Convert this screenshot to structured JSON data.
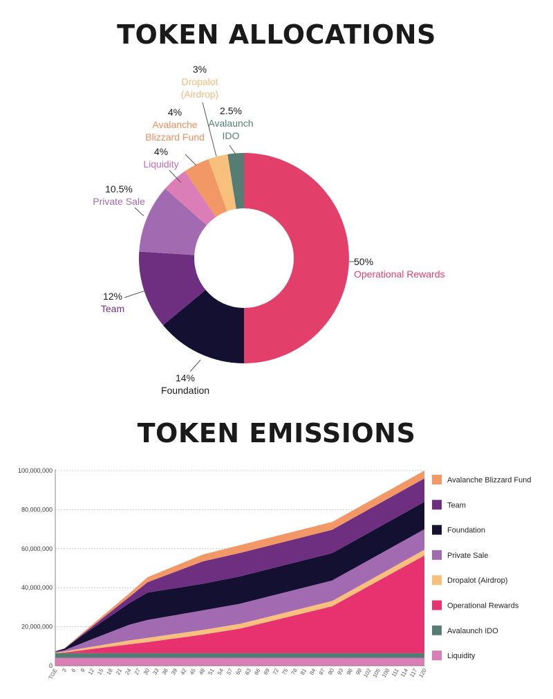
{
  "titles": {
    "allocations": "TOKEN ALLOCATIONS",
    "emissions": "TOKEN EMISSIONS"
  },
  "chart_data": [
    {
      "type": "pie",
      "title": "TOKEN ALLOCATIONS",
      "donut": true,
      "slices": [
        {
          "label": "Operational Rewards",
          "pct_label": "50%",
          "value": 50,
          "color": "#e33f6b",
          "label_color": "#e33f6b"
        },
        {
          "label": "Foundation",
          "pct_label": "14%",
          "value": 14,
          "color": "#141031",
          "label_color": "#1a1a1a"
        },
        {
          "label": "Team",
          "pct_label": "12%",
          "value": 12,
          "color": "#6f2f80",
          "label_color": "#6f2f80"
        },
        {
          "label": "Private Sale",
          "pct_label": "10.5%",
          "value": 10.5,
          "color": "#a26ab0",
          "label_color": "#a26ab0"
        },
        {
          "label": "Liquidity",
          "pct_label": "4%",
          "value": 4,
          "color": "#db7eb8",
          "label_color": "#c86aab"
        },
        {
          "label": "Avalanche Blizzard Fund",
          "pct_label": "4%",
          "value": 4,
          "color": "#f29766",
          "label_color": "#ec8d5e",
          "label_lines": [
            "Avalanche",
            "Blizzard Fund"
          ]
        },
        {
          "label": "Dropalot (Airdrop)",
          "pct_label": "3%",
          "value": 3,
          "color": "#f9bf7c",
          "label_color": "#f3b97a",
          "label_lines": [
            "Dropalot",
            "(Airdrop)"
          ]
        },
        {
          "label": "Avalaunch IDO",
          "pct_label": "2.5%",
          "value": 2.5,
          "color": "#557d74",
          "label_color": "#557d74",
          "label_lines": [
            "Avalaunch",
            "IDO"
          ]
        }
      ]
    },
    {
      "type": "area",
      "stacked": true,
      "title": "TOKEN EMISSIONS",
      "ylim": [
        0,
        100000000
      ],
      "y_ticks": [
        "0",
        "20,000,000",
        "40,000,000",
        "60,000,000",
        "80,000,000",
        "100,000,000"
      ],
      "y_tick_values": [
        0,
        20000000,
        40000000,
        60000000,
        80000000,
        100000000
      ],
      "x_tick_labels": [
        "TGE",
        "3",
        "6",
        "9",
        "12",
        "15",
        "18",
        "21",
        "24",
        "27",
        "30",
        "33",
        "36",
        "39",
        "42",
        "45",
        "48",
        "51",
        "54",
        "57",
        "60",
        "63",
        "66",
        "69",
        "72",
        "75",
        "78",
        "81",
        "84",
        "87",
        "90",
        "93",
        "96",
        "99",
        "102",
        "105",
        "108",
        "111",
        "114",
        "117",
        "120"
      ],
      "grid": true,
      "legend_position": "right",
      "legend_order": [
        "Avalanche Blizzard Fund",
        "Team",
        "Foundation",
        "Private Sale",
        "Dropalot (Airdrop)",
        "Operational Rewards",
        "Avalaunch IDO",
        "Liquidity"
      ],
      "months": [
        0,
        3,
        9,
        24,
        30,
        48,
        60,
        90,
        120
      ],
      "series": [
        {
          "name": "Liquidity",
          "color": "#db7eb8",
          "values": [
            4000000,
            4000000,
            4000000,
            4000000,
            4000000,
            4000000,
            4000000,
            4000000,
            4000000
          ]
        },
        {
          "name": "Avalaunch IDO",
          "color": "#557d74",
          "values": [
            2500000,
            2500000,
            2500000,
            2500000,
            2500000,
            2500000,
            2500000,
            2500000,
            2500000
          ]
        },
        {
          "name": "Operational Rewards",
          "color": "#e8316f",
          "values": [
            0,
            300000,
            1500000,
            4500000,
            5600000,
            9500000,
            12500000,
            24000000,
            50000000
          ]
        },
        {
          "name": "Dropalot (Airdrop)",
          "color": "#f9bf7c",
          "values": [
            300000,
            500000,
            1000000,
            2000000,
            2200000,
            2400000,
            2500000,
            2700000,
            3000000
          ]
        },
        {
          "name": "Private Sale",
          "color": "#a26ab0",
          "values": [
            300000,
            700000,
            2800000,
            8000000,
            9200000,
            10000000,
            10300000,
            10500000,
            10500000
          ]
        },
        {
          "name": "Foundation",
          "color": "#141031",
          "values": [
            300000,
            800000,
            4000000,
            11000000,
            14000000,
            13600000,
            14000000,
            14000000,
            14000000
          ]
        },
        {
          "name": "Team",
          "color": "#6f2f80",
          "values": [
            0,
            0,
            600000,
            3200000,
            5300000,
            11500000,
            12000000,
            12000000,
            12000000
          ]
        },
        {
          "name": "Avalanche Blizzard Fund",
          "color": "#f29766",
          "values": [
            100000,
            200000,
            700000,
            1800000,
            2600000,
            3500000,
            4000000,
            4000000,
            4000000
          ]
        }
      ]
    }
  ]
}
